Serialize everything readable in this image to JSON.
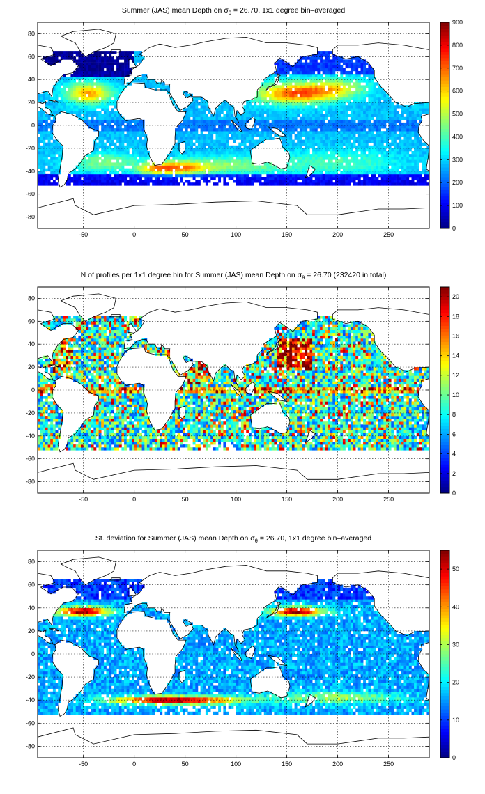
{
  "chart_data": [
    {
      "type": "heatmap",
      "title_prefix": "Summer (JAS) mean Depth on",
      "title_suffix": "= 26.70, 1x1 degree bin–averaged",
      "x_ticks": [
        "-50",
        "0",
        "50",
        "100",
        "150",
        "200",
        "250"
      ],
      "y_ticks": [
        "80",
        "60",
        "40",
        "20",
        "0",
        "-20",
        "-40",
        "-60",
        "-80"
      ],
      "xlim": [
        -95,
        290
      ],
      "ylim": [
        -90,
        90
      ],
      "colorbar": {
        "min": 0,
        "max": 900,
        "ticks": [
          "900",
          "800",
          "700",
          "600",
          "500",
          "400",
          "300",
          "200",
          "100",
          "0"
        ]
      },
      "colormap": "jet",
      "grid": true
    },
    {
      "type": "heatmap",
      "title_prefix": "N of profiles per 1x1 degree bin for Summer (JAS) mean Depth on",
      "title_suffix": "= 26.70 (232420 in total)",
      "x_ticks": [
        "-50",
        "0",
        "50",
        "100",
        "150",
        "200",
        "250"
      ],
      "y_ticks": [
        "80",
        "60",
        "40",
        "20",
        "0",
        "-20",
        "-40",
        "-60",
        "-80"
      ],
      "xlim": [
        -95,
        290
      ],
      "ylim": [
        -90,
        90
      ],
      "colorbar": {
        "min": 0,
        "max": 21,
        "ticks": [
          "20",
          "18",
          "16",
          "14",
          "12",
          "10",
          "8",
          "6",
          "4",
          "2",
          "0"
        ]
      },
      "colormap": "jet",
      "grid": true
    },
    {
      "type": "heatmap",
      "title_prefix": "St. deviation for Summer (JAS) mean Depth on",
      "title_suffix": "= 26.70, 1x1 degree bin–averaged",
      "x_ticks": [
        "-50",
        "0",
        "50",
        "100",
        "150",
        "200",
        "250"
      ],
      "y_ticks": [
        "80",
        "60",
        "40",
        "20",
        "0",
        "-20",
        "-40",
        "-60",
        "-80"
      ],
      "xlim": [
        -95,
        290
      ],
      "ylim": [
        -90,
        90
      ],
      "colorbar": {
        "min": 0,
        "max": 55,
        "ticks": [
          "50",
          "40",
          "30",
          "20",
          "10",
          "0"
        ]
      },
      "colormap": "jet",
      "grid": true
    }
  ],
  "sigma_symbol": "σ",
  "sigma_sub": "θ"
}
